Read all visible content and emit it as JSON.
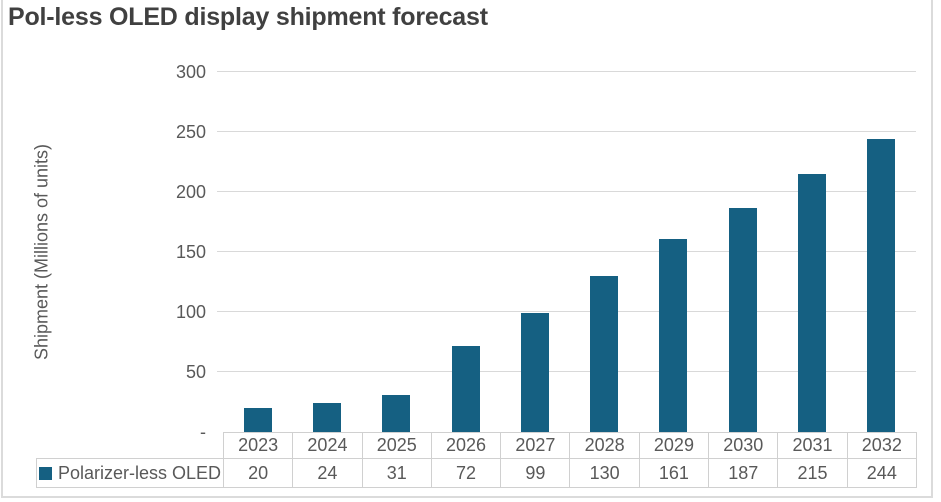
{
  "title": {
    "text": "Pol-less OLED display shipment forecast",
    "color": "#404040"
  },
  "legend": {
    "label": "Polarizer-less OLED",
    "marker_color": "#156082"
  },
  "colors": {
    "bar": "#156082",
    "gridline": "#D9D9D9",
    "table_border": "#D0D0D0",
    "axis_text": "#595959",
    "frame_border": "#DBDBDB",
    "background": "#FFFFFF"
  },
  "chart_data": {
    "type": "bar",
    "title": "Pol-less OLED display shipment forecast",
    "xlabel": "",
    "ylabel": "Shipment (Millions of units)",
    "categories": [
      "2023",
      "2024",
      "2025",
      "2026",
      "2027",
      "2028",
      "2029",
      "2030",
      "2031",
      "2032"
    ],
    "series": [
      {
        "name": "Polarizer-less OLED",
        "color": "#156082",
        "values": [
          20,
          24,
          31,
          72,
          99,
          130,
          161,
          187,
          215,
          244
        ]
      }
    ],
    "ylim": [
      0,
      300
    ],
    "y_tick_interval": 50,
    "y_ticks": [
      {
        "value": 300,
        "label": "300"
      },
      {
        "value": 250,
        "label": "250"
      },
      {
        "value": 200,
        "label": "200"
      },
      {
        "value": 150,
        "label": "150"
      },
      {
        "value": 100,
        "label": "100"
      },
      {
        "value": 50,
        "label": "50"
      },
      {
        "value": 0,
        "label": "-"
      }
    ],
    "grid": true,
    "legend_position": "data-table-left",
    "data_table": true
  }
}
